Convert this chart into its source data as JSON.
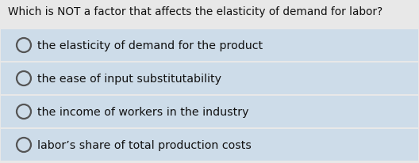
{
  "question": "Which is NOT a factor that affects the elasticity of demand for labor?",
  "options": [
    "the elasticity of demand for the product",
    "the ease of input substitutability",
    "the income of workers in the industry",
    "labor’s share of total production costs"
  ],
  "bg_color": "#e8e8e8",
  "option_bg_color": "#cddce9",
  "question_fontsize": 9.8,
  "option_fontsize": 10.2,
  "text_color": "#111111",
  "circle_edgecolor": "#555555",
  "fig_width": 5.28,
  "fig_height": 2.07,
  "dpi": 100
}
